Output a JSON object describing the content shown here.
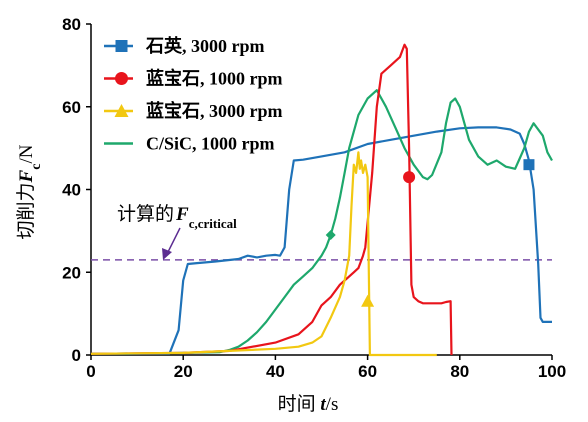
{
  "chart_data": {
    "type": "line",
    "title": "",
    "xlabel": "时间 t/s",
    "ylabel": "切削力F_c/N",
    "xlim": [
      0,
      100
    ],
    "ylim": [
      0,
      80
    ],
    "x_ticks": [
      "0",
      "20",
      "40",
      "60",
      "80",
      "100"
    ],
    "y_ticks": [
      "0",
      "20",
      "40",
      "60",
      "80"
    ],
    "grid": false,
    "legend_position": "top-left",
    "colors": {
      "quartz_3000": "#1f72b8",
      "sapphire_1000": "#e8141c",
      "sapphire_3000": "#f2c811",
      "csic_1000": "#1ea86c",
      "critical": "#7b4fa8"
    },
    "series": [
      {
        "name": "石英, 3000 rpm",
        "color": "#1f72b8",
        "marker": "square",
        "marker_point": [
          95,
          46
        ],
        "x": [
          0,
          17,
          19,
          20,
          21,
          23,
          27,
          32,
          34,
          36,
          38,
          40,
          41,
          42,
          43,
          44,
          46,
          50,
          55,
          60,
          65,
          70,
          75,
          80,
          84,
          88,
          91,
          93,
          94,
          95,
          96,
          97,
          97.5,
          98,
          100
        ],
        "y": [
          0.3,
          0.3,
          6,
          18,
          22,
          22.2,
          22.6,
          23.2,
          24,
          23.6,
          24,
          24.2,
          24,
          26,
          40,
          47,
          47.2,
          48,
          49,
          51,
          52,
          53,
          54,
          54.8,
          55,
          55,
          54.5,
          53.5,
          51,
          47,
          40,
          22,
          9,
          8,
          8
        ]
      },
      {
        "name": "蓝宝石, 1000 rpm",
        "color": "#e8141c",
        "marker": "circle",
        "marker_point": [
          69,
          43
        ],
        "x": [
          0,
          20,
          30,
          40,
          45,
          48,
          50,
          52,
          54,
          56,
          57,
          58,
          59,
          59.5,
          60,
          61,
          62,
          63,
          65,
          67,
          68,
          68.5,
          69,
          69.5,
          70,
          71,
          72,
          73,
          76,
          77,
          78,
          78.2
        ],
        "y": [
          0.3,
          0.5,
          1,
          3,
          5,
          8,
          12,
          14,
          17,
          19,
          20,
          21,
          24,
          26,
          32,
          44,
          60,
          68,
          70,
          72,
          75,
          74,
          50,
          17,
          14,
          13,
          12.5,
          12.5,
          12.5,
          12.8,
          13,
          0
        ]
      },
      {
        "name": "蓝宝石, 3000 rpm",
        "color": "#f2c811",
        "marker": "triangle",
        "marker_point": [
          60,
          13
        ],
        "x": [
          0,
          20,
          30,
          40,
          45,
          48,
          50,
          52,
          54,
          55,
          56,
          56.5,
          57,
          57.5,
          58,
          58.3,
          58.6,
          59,
          59.5,
          60,
          60.2,
          60.5,
          61,
          62,
          75
        ],
        "y": [
          0.3,
          0.5,
          1,
          1.5,
          2,
          3,
          4.5,
          9,
          14,
          18,
          24,
          36,
          46,
          44,
          49,
          45,
          47,
          44,
          46,
          43,
          26,
          0,
          0,
          0,
          0
        ]
      },
      {
        "name": "C/SiC, 1000 rpm",
        "color": "#1ea86c",
        "marker": "diamond",
        "marker_point": [
          52,
          29
        ],
        "x": [
          0,
          15,
          20,
          28,
          30,
          32,
          34,
          36,
          38,
          40,
          42,
          44,
          46,
          48,
          50,
          51,
          52,
          53,
          54,
          55,
          56,
          58,
          60,
          62,
          64,
          66,
          68,
          70,
          72,
          73,
          74,
          76,
          77,
          78,
          79,
          80,
          82,
          84,
          86,
          88,
          90,
          92,
          93,
          94,
          95,
          96,
          98,
          99,
          100
        ],
        "y": [
          0.3,
          0.4,
          0.5,
          0.7,
          1.2,
          2,
          3.5,
          5.5,
          8,
          11,
          14,
          17,
          19,
          21,
          24,
          26,
          29,
          33,
          38,
          44,
          50,
          58,
          62,
          64,
          60,
          55,
          50,
          46,
          43,
          42.5,
          43.5,
          49,
          56,
          61,
          62,
          60,
          52,
          48,
          46,
          47,
          45.5,
          45,
          47.5,
          50,
          54,
          56,
          53,
          49,
          47
        ]
      }
    ],
    "reference_lines": [
      {
        "type": "horizontal",
        "y": 23,
        "style": "dashed",
        "color": "#7b4fa8",
        "label": "计算的F_c,critical"
      }
    ],
    "annotations": [
      {
        "text": "计算的F_c,critical",
        "arrow_to": [
          17,
          24
        ]
      }
    ]
  },
  "text": {
    "xlabel_main": "时间 ",
    "xlabel_var": "t",
    "xlabel_unit": "/s",
    "ylabel_main": "切削力",
    "ylabel_var": "F",
    "ylabel_sub": "c",
    "ylabel_unit": "/N",
    "critical_main": "计算的",
    "critical_var": "F",
    "critical_sub": "c,critical"
  }
}
